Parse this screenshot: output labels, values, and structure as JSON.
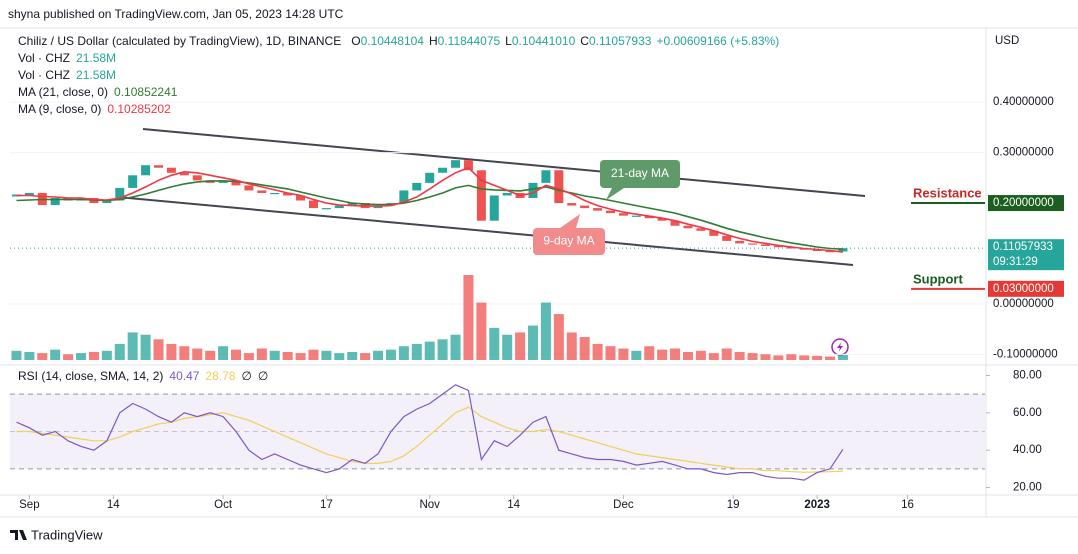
{
  "header": {
    "published": "shyna published on TradingView.com, Jan 05, 2023 14:28 UTC",
    "symbol": "Chiliz / US Dollar (calculated by TradingView), 1D, BINANCE",
    "ohlc": [
      {
        "name": "O",
        "value": "0.10448104"
      },
      {
        "name": "H",
        "value": "0.11844075"
      },
      {
        "name": "L",
        "value": "0.10441010"
      },
      {
        "name": "C",
        "value": "0.11057933"
      }
    ],
    "change": "+0.00609166 (+5.83%)"
  },
  "chart_data": {
    "type": "candlestick",
    "currency": "USD",
    "up_color": "#26a69a",
    "down_color": "#ef5350",
    "closes": [
      0.215,
      0.22,
      0.196,
      0.21,
      0.205,
      0.21,
      0.2,
      0.205,
      0.23,
      0.255,
      0.275,
      0.27,
      0.26,
      0.255,
      0.245,
      0.24,
      0.245,
      0.235,
      0.225,
      0.22,
      0.22,
      0.215,
      0.205,
      0.19,
      0.19,
      0.195,
      0.2,
      0.19,
      0.195,
      0.2,
      0.225,
      0.24,
      0.26,
      0.27,
      0.285,
      0.265,
      0.165,
      0.215,
      0.22,
      0.21,
      0.24,
      0.265,
      0.2,
      0.195,
      0.19,
      0.185,
      0.18,
      0.175,
      0.175,
      0.17,
      0.165,
      0.155,
      0.15,
      0.145,
      0.135,
      0.125,
      0.12,
      0.118,
      0.115,
      0.113,
      0.11,
      0.108,
      0.105,
      0.104,
      0.11057933
    ],
    "volumes": [
      40,
      35,
      30,
      45,
      25,
      30,
      35,
      40,
      70,
      120,
      110,
      90,
      70,
      60,
      50,
      40,
      60,
      45,
      30,
      50,
      40,
      35,
      30,
      45,
      40,
      30,
      35,
      30,
      40,
      45,
      60,
      70,
      80,
      90,
      110,
      370,
      250,
      140,
      110,
      120,
      150,
      250,
      200,
      120,
      100,
      70,
      60,
      50,
      40,
      60,
      45,
      50,
      35,
      40,
      30,
      50,
      35,
      30,
      25,
      20,
      25,
      20,
      18,
      15,
      21.58
    ],
    "volume_legend": [
      {
        "name": "Vol · CHZ",
        "label": "21.58M"
      },
      {
        "name": "Vol · CHZ",
        "label": "21.58M"
      }
    ],
    "ma": [
      {
        "name": "MA (21, close, 0)",
        "color": "#2e7d32",
        "values": [
          0.205,
          0.206,
          0.207,
          0.207,
          0.207,
          0.207,
          0.206,
          0.205,
          0.207,
          0.212,
          0.218,
          0.225,
          0.232,
          0.238,
          0.242,
          0.244,
          0.244,
          0.243,
          0.24,
          0.236,
          0.232,
          0.228,
          0.222,
          0.216,
          0.21,
          0.205,
          0.2,
          0.198,
          0.197,
          0.197,
          0.2,
          0.205,
          0.212,
          0.22,
          0.23,
          0.235,
          0.228,
          0.226,
          0.225,
          0.224,
          0.228,
          0.232,
          0.225,
          0.22,
          0.214,
          0.21,
          0.205,
          0.2,
          0.195,
          0.19,
          0.185,
          0.18,
          0.173,
          0.166,
          0.158,
          0.15,
          0.143,
          0.137,
          0.131,
          0.126,
          0.121,
          0.117,
          0.113,
          0.11,
          0.10852241
        ]
      },
      {
        "name": "MA (9, close, 0)",
        "color": "#f23645",
        "values": [
          0.215,
          0.215,
          0.213,
          0.212,
          0.21,
          0.21,
          0.207,
          0.206,
          0.21,
          0.22,
          0.232,
          0.245,
          0.255,
          0.262,
          0.26,
          0.255,
          0.25,
          0.245,
          0.238,
          0.232,
          0.226,
          0.22,
          0.215,
          0.207,
          0.2,
          0.196,
          0.195,
          0.194,
          0.194,
          0.195,
          0.202,
          0.212,
          0.228,
          0.245,
          0.26,
          0.27,
          0.245,
          0.235,
          0.225,
          0.215,
          0.22,
          0.235,
          0.228,
          0.218,
          0.205,
          0.195,
          0.188,
          0.182,
          0.178,
          0.174,
          0.17,
          0.165,
          0.158,
          0.152,
          0.145,
          0.137,
          0.13,
          0.124,
          0.12,
          0.116,
          0.113,
          0.11,
          0.108,
          0.106,
          0.10285202
        ]
      }
    ],
    "ylim": [
      -0.115,
      0.539
    ],
    "yticks": [
      {
        "value": 0.4,
        "label": "0.40000000"
      },
      {
        "value": 0.3,
        "label": "0.30000000"
      },
      {
        "value": 0,
        "label": "0.00000000"
      },
      {
        "value": -0.1,
        "label": "-0.10000000"
      }
    ],
    "levels": [
      {
        "name": "Resistance",
        "value": 0.2,
        "label": "0.20000000",
        "color": "#1b5e20",
        "text_color": "#c62828"
      },
      {
        "name": "Support",
        "value": 0.03,
        "label": "0.03000000",
        "color": "#e53935",
        "text_color": "#1b5e20"
      }
    ],
    "countdown": "09:31:29",
    "annotations": [
      {
        "text": "21-day MA",
        "color": "#5e9a6a"
      },
      {
        "text": "9-day MA",
        "color": "#f28b8b"
      }
    ],
    "xlim": [
      -0.5,
      75
    ],
    "xticks": [
      {
        "value": 1,
        "label": "Sep"
      },
      {
        "value": 7.5,
        "label": "14"
      },
      {
        "value": 16,
        "label": "Oct"
      },
      {
        "value": 24,
        "label": "17"
      },
      {
        "value": 32,
        "label": "Nov"
      },
      {
        "value": 38.5,
        "label": "14"
      },
      {
        "value": 47,
        "label": "Dec"
      },
      {
        "value": 55.5,
        "label": "19"
      },
      {
        "value": 62,
        "label": "2023"
      },
      {
        "value": 69,
        "label": "16"
      }
    ],
    "rsi": {
      "name": "RSI (14, close, SMA, 14, 2)",
      "color": "#7e57c2",
      "sma_color": "#f2cf58",
      "extra": [
        "∅",
        "∅"
      ],
      "values": [
        55,
        52,
        48,
        50,
        45,
        42,
        40,
        45,
        60,
        65,
        62,
        58,
        55,
        60,
        58,
        60,
        58,
        50,
        40,
        35,
        38,
        35,
        32,
        30,
        28,
        30,
        35,
        33,
        38,
        50,
        58,
        62,
        65,
        70,
        75,
        72,
        35,
        45,
        42,
        48,
        55,
        58,
        40,
        38,
        36,
        35,
        35,
        34,
        32,
        33,
        34,
        32,
        30,
        30,
        28,
        27,
        28,
        28,
        26,
        25,
        25,
        24,
        28,
        30,
        40.47
      ],
      "sma_values": [
        50,
        50,
        49,
        48,
        47,
        46,
        45,
        45,
        47,
        50,
        52,
        54,
        55,
        57,
        58,
        59,
        60,
        58,
        56,
        53,
        50,
        47,
        44,
        41,
        38,
        36,
        34,
        33,
        33,
        34,
        37,
        42,
        48,
        54,
        60,
        63,
        58,
        55,
        52,
        50,
        50,
        51,
        50,
        48,
        46,
        44,
        42,
        40,
        38,
        37,
        36,
        35,
        34,
        33,
        32,
        31,
        30,
        30,
        29,
        29,
        28.5,
        28.2,
        28.3,
        28.5,
        28.78
      ],
      "ylim": [
        16,
        84
      ],
      "yticks": [
        {
          "value": 80,
          "label": "80.00"
        },
        {
          "value": 60,
          "label": "60.00"
        },
        {
          "value": 40,
          "label": "40.00"
        },
        {
          "value": 20,
          "label": "20.00"
        }
      ],
      "bands": [
        70,
        50,
        30
      ]
    },
    "footer": "TradingView"
  }
}
